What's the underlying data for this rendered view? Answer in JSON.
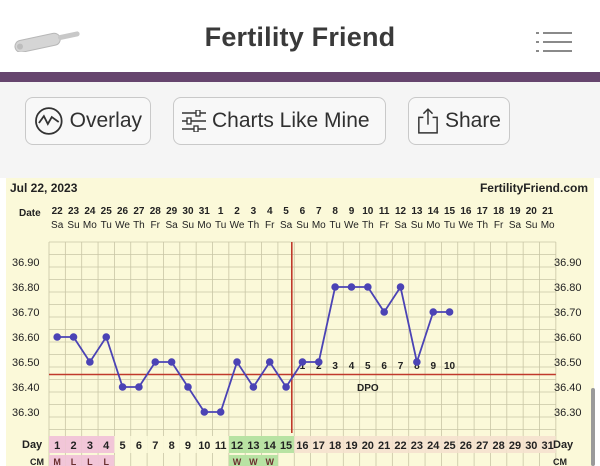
{
  "header": {
    "title": "Fertility Friend",
    "thermometer_icon": "thermometer-icon",
    "menu_icon": "hamburger-menu-icon",
    "accent_color": "#66456e"
  },
  "toolbar": {
    "overlay_label": "Overlay",
    "charts_like_mine_label": "Charts Like Mine",
    "share_label": "Share"
  },
  "chart_data": {
    "type": "line",
    "date_label": "Jul 22, 2023",
    "brand": "FertilityFriend.com",
    "date_row_label": "Date",
    "day_row_label": "Day",
    "cm_row_label": "CM",
    "dates": [
      22,
      23,
      24,
      25,
      26,
      27,
      28,
      29,
      30,
      31,
      1,
      2,
      3,
      4,
      5,
      6,
      7,
      8,
      9,
      10,
      11,
      12,
      13,
      14,
      15,
      16,
      17,
      18,
      19,
      20,
      21
    ],
    "weekdays": [
      "Sa",
      "Su",
      "Mo",
      "Tu",
      "We",
      "Th",
      "Fr",
      "Sa",
      "Su",
      "Mo",
      "Tu",
      "We",
      "Th",
      "Fr",
      "Sa",
      "Su",
      "Mo",
      "Tu",
      "We",
      "Th",
      "Fr",
      "Sa",
      "Su",
      "Mo",
      "Tu",
      "We",
      "Th",
      "Fr",
      "Sa",
      "Su",
      "Mo"
    ],
    "cycle_days": [
      1,
      2,
      3,
      4,
      5,
      6,
      7,
      8,
      9,
      10,
      11,
      12,
      13,
      14,
      15,
      16,
      17,
      18,
      19,
      20,
      21,
      22,
      23,
      24,
      25,
      26,
      27,
      28,
      29,
      30,
      31
    ],
    "temperatures": [
      36.6,
      36.6,
      36.5,
      36.6,
      36.4,
      36.4,
      36.5,
      36.5,
      36.4,
      36.3,
      36.3,
      36.5,
      36.4,
      36.5,
      36.4,
      36.5,
      36.5,
      36.8,
      36.8,
      36.8,
      36.7,
      36.8,
      36.5,
      36.7,
      36.7
    ],
    "y_ticks": [
      "36.90",
      "36.80",
      "36.70",
      "36.60",
      "36.50",
      "36.40",
      "36.30"
    ],
    "ylim": [
      36.2,
      36.95
    ],
    "coverline": 36.45,
    "ovulation_day": 15,
    "dpo_label": "DPO",
    "dpo_numbers": [
      "1",
      "2",
      "3",
      "4",
      "5",
      "6",
      "7",
      "8",
      "9",
      "10"
    ],
    "cm_values": [
      "M",
      "L",
      "L",
      "L",
      "",
      "",
      "",
      "",
      "",
      "",
      "",
      "W",
      "W",
      "W"
    ],
    "period_days": [
      1,
      2,
      3,
      4
    ],
    "fertile_days": [
      12,
      13,
      14,
      15
    ],
    "colors": {
      "line": "#4b43b5",
      "coverline": "#c0392b",
      "period": "#f2c6d8",
      "fertile": "#b8e3a3",
      "post": "#f6e4d0",
      "grid": "#c9c6a6"
    }
  }
}
